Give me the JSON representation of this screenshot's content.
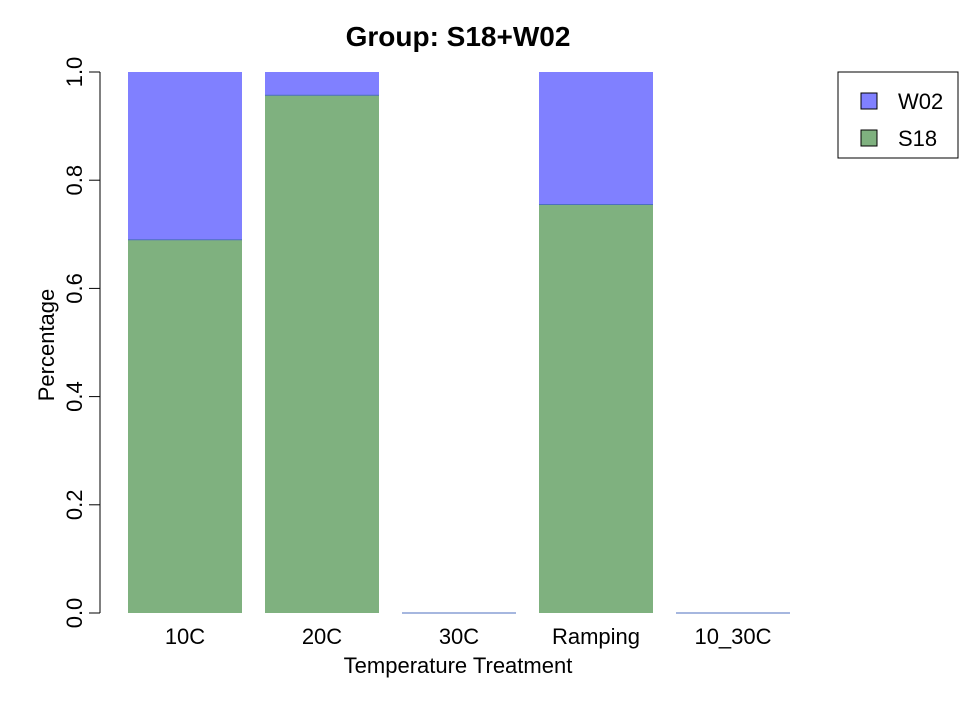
{
  "chart_data": {
    "type": "bar",
    "stacked": true,
    "title": "Group: S18+W02",
    "xlabel": "Temperature Treatment",
    "ylabel": "Percentage",
    "ylim": [
      0,
      1
    ],
    "yticks": [
      "0.0",
      "0.2",
      "0.4",
      "0.6",
      "0.8",
      "1.0"
    ],
    "categories": [
      "10C",
      "20C",
      "30C",
      "Ramping",
      "10_30C"
    ],
    "series": [
      {
        "name": "S18",
        "color": "#7fb17f",
        "values": [
          0.69,
          0.957,
          0,
          0.755,
          0
        ]
      },
      {
        "name": "W02",
        "color": "#8080ff",
        "values": [
          0.31,
          0.043,
          0,
          0.245,
          0
        ]
      }
    ],
    "legend": {
      "position": "top-right",
      "order": [
        "W02",
        "S18"
      ]
    },
    "grid": false
  }
}
